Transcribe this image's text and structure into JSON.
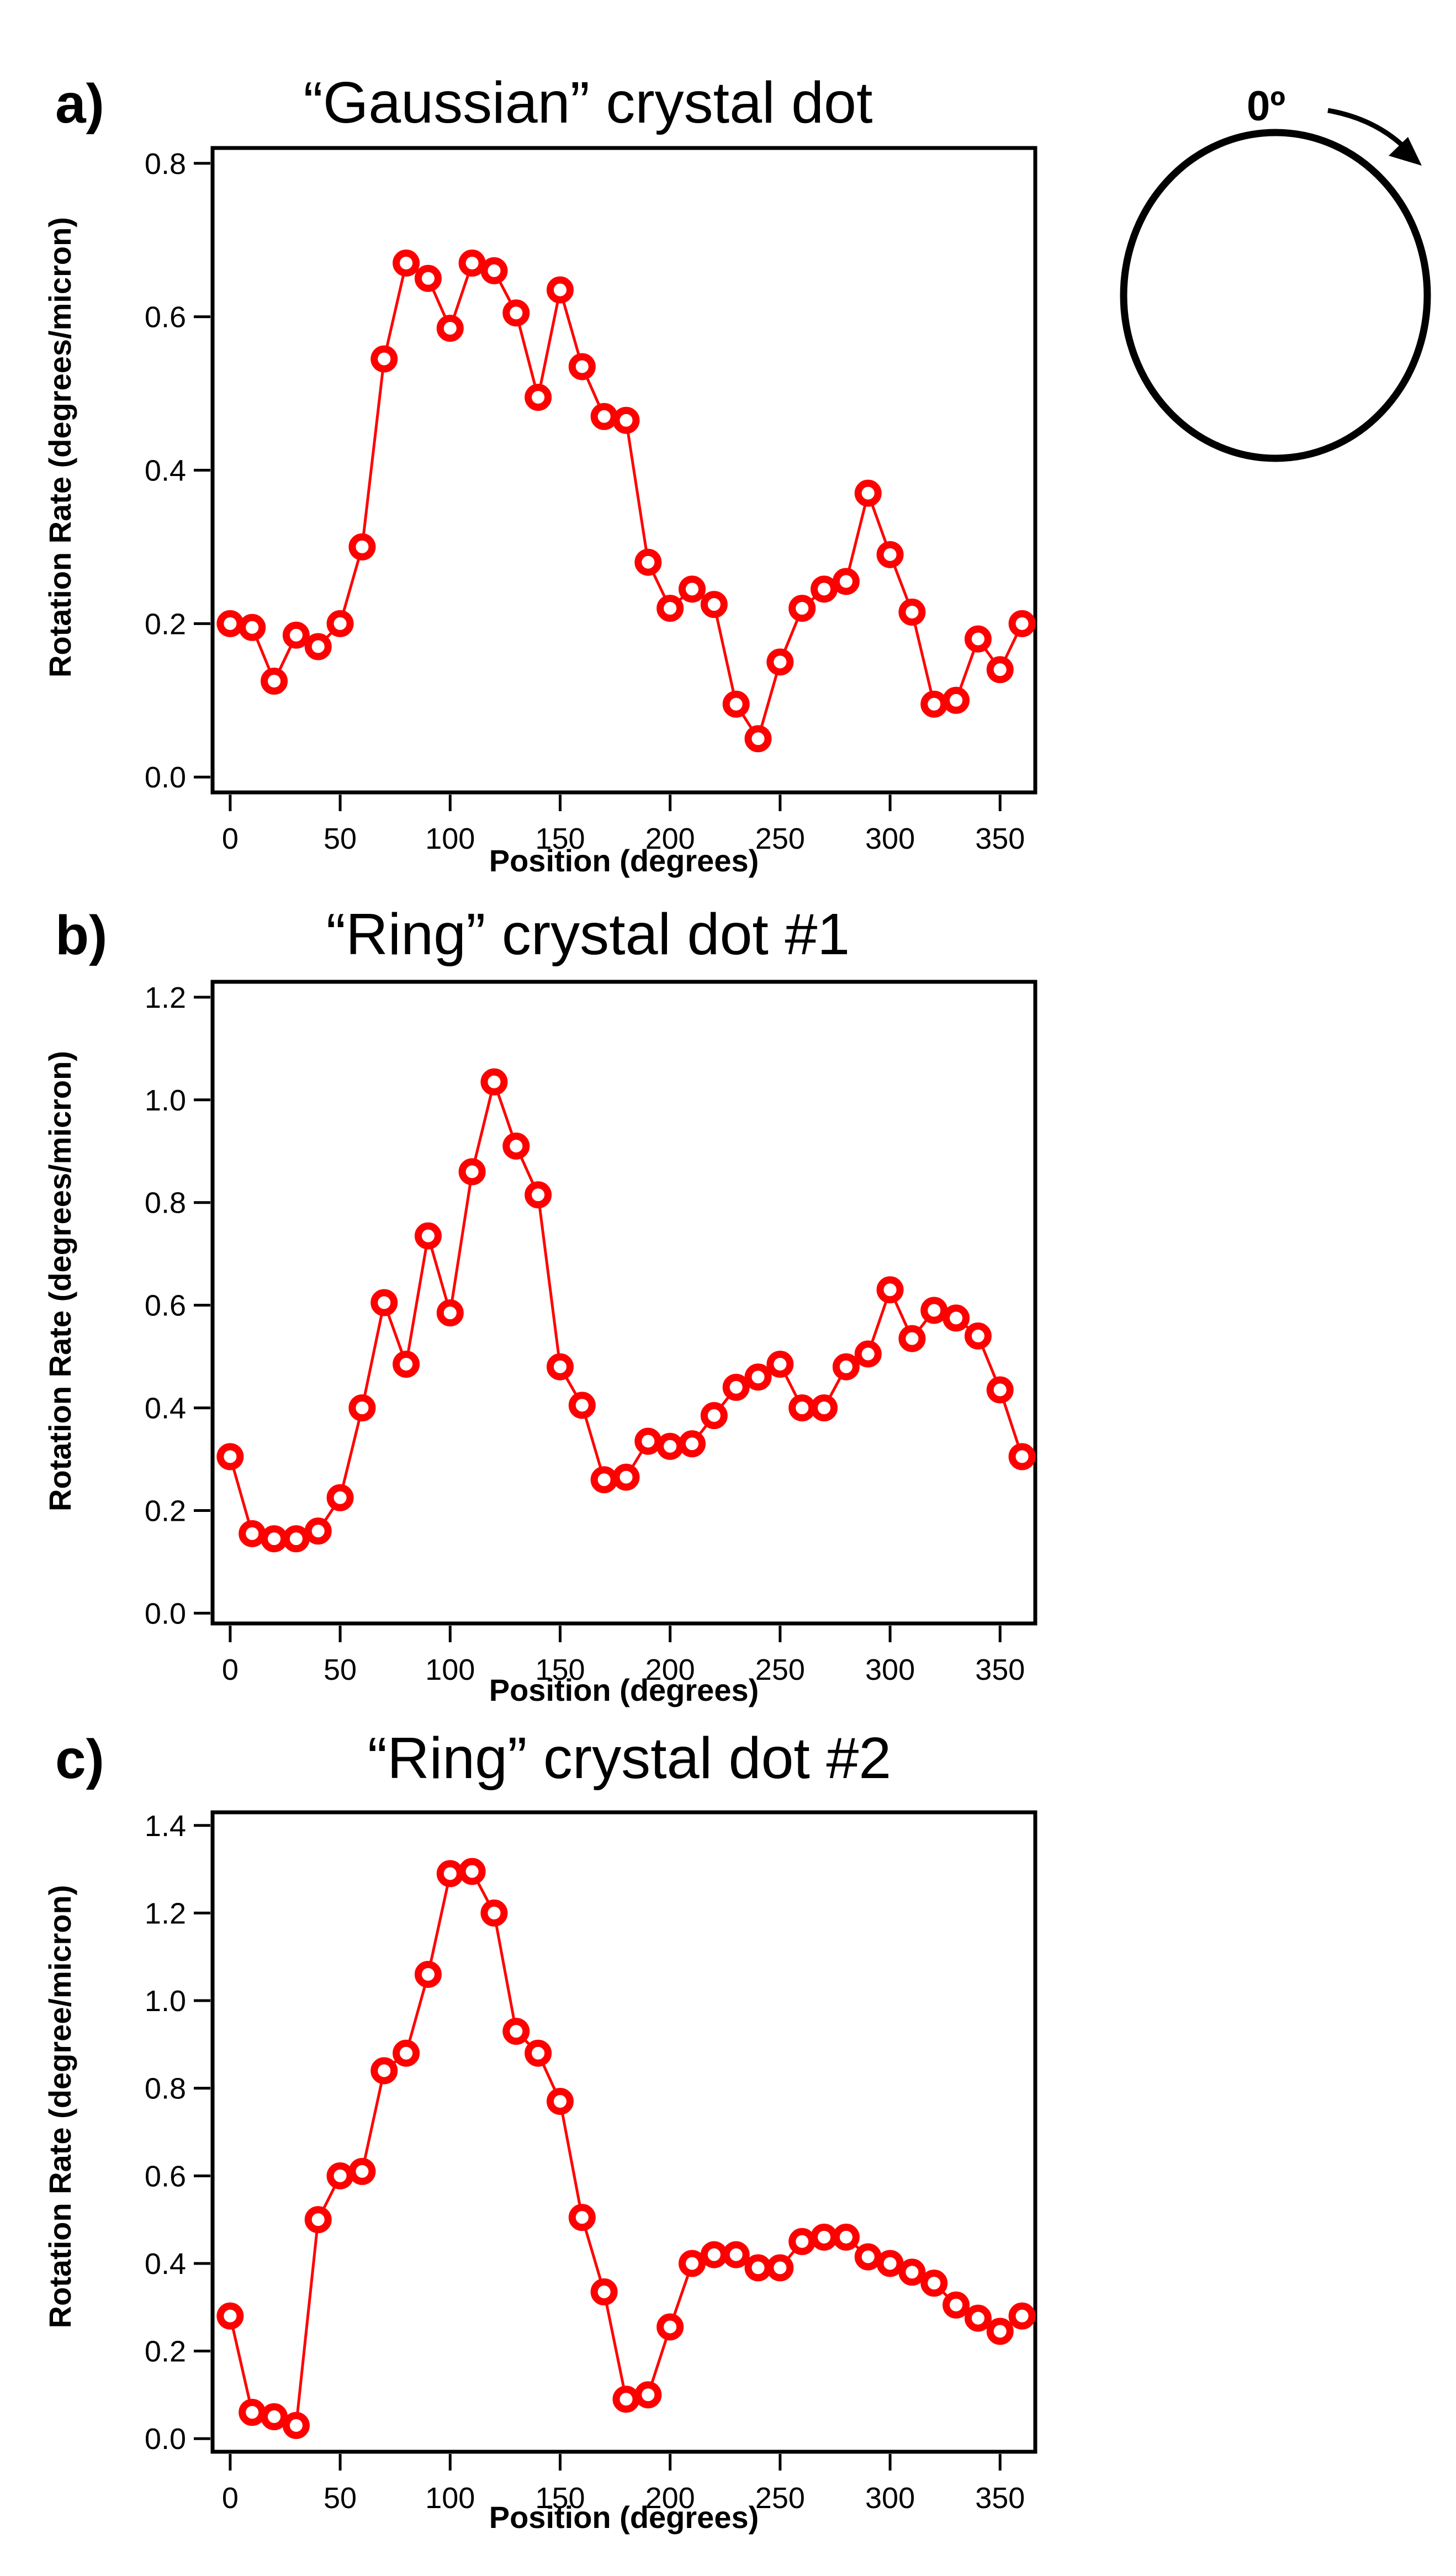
{
  "chart_data": [
    {
      "type": "line",
      "panel": "a)",
      "title": "“Gaussian” crystal dot",
      "xlabel": "Position (degrees)",
      "ylabel": "Rotation Rate (degrees/micron)",
      "xlim": [
        -8,
        366
      ],
      "ylim": [
        -0.02,
        0.82
      ],
      "xticks": [
        0,
        50,
        100,
        150,
        200,
        250,
        300,
        350
      ],
      "yticks": [
        "0.0",
        "0.2",
        "0.4",
        "0.6",
        "0.8"
      ],
      "x": [
        0,
        10,
        20,
        30,
        40,
        50,
        60,
        70,
        80,
        90,
        100,
        110,
        120,
        130,
        140,
        150,
        160,
        170,
        180,
        190,
        200,
        210,
        220,
        230,
        240,
        250,
        260,
        270,
        280,
        290,
        300,
        310,
        320,
        330,
        340,
        350,
        360
      ],
      "values": [
        0.2,
        0.195,
        0.125,
        0.185,
        0.17,
        0.2,
        0.3,
        0.545,
        0.67,
        0.65,
        0.585,
        0.67,
        0.66,
        0.605,
        0.495,
        0.635,
        0.535,
        0.47,
        0.465,
        0.28,
        0.22,
        0.245,
        0.225,
        0.095,
        0.05,
        0.15,
        0.22,
        0.245,
        0.255,
        0.37,
        0.29,
        0.215,
        0.095,
        0.1,
        0.18,
        0.14,
        0.2
      ],
      "color": "#ff0000"
    },
    {
      "type": "line",
      "panel": "b)",
      "title": "“Ring” crystal dot #1",
      "xlabel": "Position (degrees)",
      "ylabel": "Rotation Rate (degrees/micron)",
      "xlim": [
        -8,
        366
      ],
      "ylim": [
        -0.02,
        1.23
      ],
      "xticks": [
        0,
        50,
        100,
        150,
        200,
        250,
        300,
        350
      ],
      "yticks": [
        "0.0",
        "0.2",
        "0.4",
        "0.6",
        "0.8",
        "1.0",
        "1.2"
      ],
      "x": [
        0,
        10,
        20,
        30,
        40,
        50,
        60,
        70,
        80,
        90,
        100,
        110,
        120,
        130,
        140,
        150,
        160,
        170,
        180,
        190,
        200,
        210,
        220,
        230,
        240,
        250,
        260,
        270,
        280,
        290,
        300,
        310,
        320,
        330,
        340,
        350,
        360
      ],
      "values": [
        0.305,
        0.155,
        0.145,
        0.145,
        0.16,
        0.225,
        0.4,
        0.605,
        0.485,
        0.735,
        0.585,
        0.86,
        1.035,
        0.91,
        0.815,
        0.48,
        0.405,
        0.26,
        0.265,
        0.335,
        0.325,
        0.33,
        0.385,
        0.44,
        0.46,
        0.485,
        0.4,
        0.4,
        0.48,
        0.505,
        0.63,
        0.535,
        0.59,
        0.575,
        0.54,
        0.435,
        0.305
      ],
      "color": "#ff0000"
    },
    {
      "type": "line",
      "panel": "c)",
      "title": "“Ring” crystal dot #2",
      "xlabel": "Position (degrees)",
      "ylabel": "Rotation Rate (degree/micron)",
      "xlim": [
        -8,
        366
      ],
      "ylim": [
        -0.03,
        1.43
      ],
      "xticks": [
        0,
        50,
        100,
        150,
        200,
        250,
        300,
        350
      ],
      "yticks": [
        "0.0",
        "0.2",
        "0.4",
        "0.6",
        "0.8",
        "1.0",
        "1.2",
        "1.4"
      ],
      "x": [
        0,
        10,
        20,
        30,
        40,
        50,
        60,
        70,
        80,
        90,
        100,
        110,
        120,
        130,
        140,
        150,
        160,
        170,
        180,
        190,
        200,
        210,
        220,
        230,
        240,
        250,
        260,
        270,
        280,
        290,
        300,
        310,
        320,
        330,
        340,
        350,
        360
      ],
      "values": [
        0.28,
        0.06,
        0.05,
        0.03,
        0.5,
        0.6,
        0.61,
        0.84,
        0.88,
        1.06,
        1.29,
        1.295,
        1.2,
        0.93,
        0.88,
        0.77,
        0.505,
        0.335,
        0.09,
        0.1,
        0.255,
        0.4,
        0.42,
        0.42,
        0.39,
        0.39,
        0.45,
        0.46,
        0.46,
        0.415,
        0.4,
        0.38,
        0.355,
        0.305,
        0.275,
        0.245,
        0.28
      ],
      "color": "#ff0000"
    }
  ],
  "orientation_diagram": {
    "label": "0º",
    "circle_icon": "circle-outline",
    "arrow_icon": "clockwise-arrow"
  }
}
